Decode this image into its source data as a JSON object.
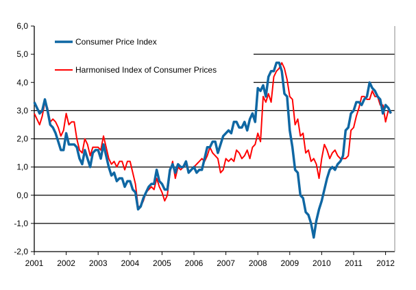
{
  "chart_data": {
    "type": "line",
    "title": "",
    "xlabel": "",
    "ylabel": "",
    "ylim": [
      -2,
      6
    ],
    "y_ticks": [
      "-2,0",
      "-1,0",
      "0,0",
      "1,0",
      "2,0",
      "3,0",
      "4,0",
      "5,0",
      "6,0"
    ],
    "y_tick_values": [
      -2,
      -1,
      0,
      1,
      2,
      3,
      4,
      5,
      6
    ],
    "x_ticks": [
      "2001",
      "2002",
      "2003",
      "2004",
      "2005",
      "2006",
      "2007",
      "2008",
      "2009",
      "2010",
      "2011",
      "2012"
    ],
    "x_start": "2001-01",
    "x_frequency": "monthly",
    "grid": true,
    "legend": "top-left",
    "series": [
      {
        "name": "Consumer Price Index",
        "color": "#0f67a3",
        "values": [
          3.3,
          3.1,
          2.9,
          3.0,
          3.4,
          3.0,
          2.5,
          2.4,
          2.2,
          1.9,
          1.6,
          1.6,
          2.2,
          1.8,
          1.8,
          1.8,
          1.7,
          1.3,
          1.1,
          1.6,
          1.3,
          1.0,
          1.5,
          1.6,
          1.6,
          1.3,
          1.8,
          1.4,
          1.0,
          0.7,
          0.8,
          0.5,
          0.6,
          0.6,
          0.3,
          0.5,
          0.5,
          0.2,
          0.1,
          -0.5,
          -0.4,
          -0.1,
          0.1,
          0.3,
          0.4,
          0.4,
          0.9,
          0.5,
          0.4,
          0.2,
          0.2,
          0.9,
          1.1,
          0.8,
          1.1,
          1.0,
          1.0,
          1.2,
          0.8,
          0.9,
          1.0,
          0.8,
          0.9,
          0.9,
          1.3,
          1.7,
          1.7,
          1.9,
          1.9,
          1.5,
          1.8,
          2.1,
          2.2,
          2.3,
          2.2,
          2.6,
          2.6,
          2.4,
          2.4,
          2.6,
          2.3,
          2.7,
          2.9,
          2.6,
          3.8,
          3.7,
          3.9,
          3.5,
          4.2,
          4.4,
          4.4,
          4.7,
          4.7,
          4.4,
          3.6,
          3.5,
          2.3,
          1.7,
          0.9,
          0.8,
          0.0,
          -0.1,
          -0.6,
          -0.7,
          -1.0,
          -1.5,
          -0.9,
          -0.5,
          -0.2,
          0.2,
          0.6,
          0.9,
          1.0,
          0.9,
          1.1,
          1.2,
          1.4,
          2.3,
          2.4,
          2.9,
          3.0,
          3.3,
          3.3,
          3.2,
          3.4,
          3.5,
          4.0,
          3.8,
          3.7,
          3.5,
          3.4,
          2.9,
          3.2,
          3.1,
          2.9
        ]
      },
      {
        "name": "Harmonised Index of Consumer Prices",
        "color": "#ff0000",
        "values": [
          2.9,
          2.7,
          2.5,
          2.8,
          3.3,
          3.1,
          2.6,
          2.7,
          2.6,
          2.4,
          2.1,
          2.3,
          2.9,
          2.5,
          2.6,
          2.6,
          2.0,
          1.6,
          1.5,
          2.0,
          1.8,
          1.4,
          1.7,
          1.7,
          1.7,
          1.6,
          2.1,
          1.7,
          1.3,
          1.1,
          1.2,
          1.0,
          1.2,
          1.2,
          0.9,
          1.2,
          1.2,
          0.8,
          0.4,
          -0.4,
          -0.4,
          -0.2,
          0.1,
          0.2,
          0.3,
          0.2,
          0.6,
          0.3,
          0.1,
          -0.2,
          0.0,
          0.8,
          1.2,
          0.6,
          1.0,
          0.9,
          1.0,
          1.1,
          0.8,
          0.9,
          1.0,
          1.1,
          1.2,
          1.3,
          1.2,
          1.4,
          1.7,
          1.5,
          1.4,
          1.3,
          0.8,
          0.9,
          1.3,
          1.2,
          1.3,
          1.2,
          1.6,
          1.5,
          1.3,
          1.4,
          1.6,
          1.3,
          1.7,
          1.8,
          2.2,
          1.9,
          3.5,
          3.3,
          3.6,
          3.3,
          4.2,
          4.4,
          4.5,
          4.7,
          4.5,
          4.1,
          3.5,
          3.4,
          2.5,
          2.7,
          2.1,
          2.2,
          1.5,
          1.6,
          1.2,
          1.3,
          1.1,
          0.6,
          1.3,
          1.8,
          1.6,
          1.3,
          1.5,
          1.6,
          1.4,
          1.3,
          1.3,
          1.3,
          1.4,
          2.3,
          2.4,
          2.8,
          3.1,
          3.5,
          3.5,
          3.4,
          3.4,
          3.7,
          3.5,
          3.5,
          3.2,
          3.2,
          2.6,
          3.0,
          2.9
        ]
      }
    ]
  }
}
